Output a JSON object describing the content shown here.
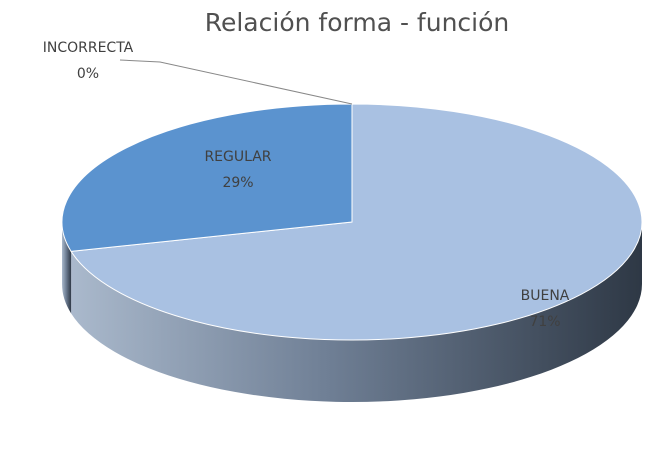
{
  "chart_data": {
    "type": "pie",
    "title": "Relación forma - función",
    "categories": [
      "BUENA",
      "REGULAR",
      "INCORRECTA"
    ],
    "values": [
      71,
      29,
      0
    ],
    "value_labels": [
      "71%",
      "29%",
      "0%"
    ],
    "colors": [
      "#a9c1e2",
      "#5b93cf",
      "#2f5f98"
    ],
    "start_angle": -90,
    "direction": "clockwise",
    "three_d": true
  }
}
